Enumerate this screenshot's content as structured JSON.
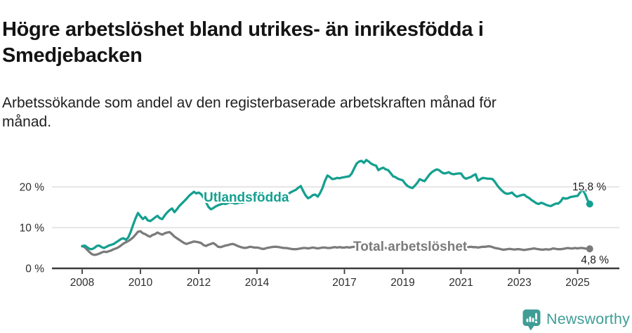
{
  "chart_data": {
    "type": "line",
    "title": "Högre arbetslöshet bland utrikes- än inrikesfödda i Smedjebacken",
    "subtitle": "Arbetssökande som andel av den registerbaserade arbetskraften månad för månad.",
    "xlabel": "",
    "ylabel": "",
    "x_start": "2008-01",
    "x_end": "2025-06",
    "frequency": "monthly",
    "xticks": [
      2008,
      2010,
      2012,
      2014,
      2017,
      2019,
      2021,
      2023,
      2025
    ],
    "ytick_labels": [
      "0 %",
      "10 %",
      "20 %"
    ],
    "ytick_values": [
      0,
      10,
      20
    ],
    "ylim": [
      0,
      28
    ],
    "grid": "horizontal-only",
    "legend": "inline-series-labels",
    "series": [
      {
        "name": "Utlandsfödda",
        "color": "#14a090",
        "end_label": "15,8 %",
        "last_value": 15.8,
        "values": [
          5.4,
          5.6,
          5.2,
          4.8,
          4.7,
          5.0,
          5.5,
          5.6,
          5.2,
          5.0,
          5.3,
          5.6,
          5.8,
          6.0,
          6.4,
          6.8,
          7.2,
          7.4,
          7.0,
          7.6,
          9.0,
          10.7,
          12.3,
          13.6,
          12.8,
          12.1,
          12.6,
          11.8,
          11.6,
          12.0,
          12.5,
          12.9,
          12.3,
          12.1,
          13.0,
          13.7,
          14.3,
          14.7,
          13.8,
          14.5,
          15.3,
          15.9,
          16.5,
          17.1,
          17.8,
          18.3,
          18.8,
          18.4,
          18.6,
          18.2,
          17.3,
          16.2,
          15.1,
          14.5,
          14.8,
          15.2,
          15.5,
          15.7,
          15.9,
          15.8,
          16.0,
          16.2,
          16.1,
          15.9,
          16.0,
          16.2,
          16.1,
          16.3,
          16.4,
          16.5,
          16.4,
          16.6,
          16.5,
          16.7,
          16.9,
          17.0,
          16.8,
          17.0,
          17.2,
          17.3,
          17.2,
          17.4,
          17.5,
          17.7,
          18.0,
          18.3,
          18.7,
          19.0,
          19.3,
          19.8,
          20.2,
          19.0,
          17.9,
          17.2,
          17.5,
          18.0,
          18.1,
          17.6,
          18.5,
          19.8,
          21.5,
          22.8,
          22.4,
          21.9,
          22.0,
          22.2,
          22.1,
          22.3,
          22.4,
          22.5,
          22.6,
          23.3,
          24.5,
          25.7,
          26.2,
          26.4,
          25.9,
          26.6,
          26.2,
          25.7,
          25.4,
          25.2,
          24.1,
          24.5,
          24.7,
          24.3,
          24.1,
          23.4,
          22.6,
          22.4,
          22.0,
          21.8,
          21.6,
          20.8,
          20.2,
          19.9,
          19.7,
          20.3,
          21.0,
          21.9,
          21.6,
          21.4,
          22.2,
          23.0,
          23.6,
          24.0,
          24.3,
          24.1,
          23.6,
          23.3,
          23.4,
          23.6,
          23.2,
          23.1,
          23.2,
          23.3,
          23.3,
          22.4,
          22.0,
          22.2,
          22.4,
          22.8,
          23.1,
          21.5,
          21.9,
          22.2,
          22.1,
          22.0,
          22.0,
          21.9,
          21.2,
          20.3,
          19.6,
          19.0,
          18.5,
          18.3,
          18.4,
          18.6,
          18.0,
          17.6,
          17.8,
          18.0,
          18.1,
          17.6,
          17.3,
          16.8,
          16.4,
          16.0,
          15.8,
          16.1,
          15.9,
          15.6,
          15.4,
          15.3,
          15.6,
          15.9,
          15.9,
          16.4,
          17.3,
          17.1,
          17.2,
          17.5,
          17.6,
          17.7,
          17.8,
          18.6,
          19.3,
          18.4,
          16.9,
          15.8
        ]
      },
      {
        "name": "Total arbetslöshet",
        "color": "#7b7b7b",
        "end_label": "4,8 %",
        "last_value": 4.8,
        "values": [
          5.5,
          5.2,
          4.6,
          4.0,
          3.5,
          3.3,
          3.4,
          3.6,
          3.9,
          4.1,
          4.0,
          4.2,
          4.4,
          4.7,
          4.9,
          5.2,
          5.6,
          6.1,
          6.4,
          6.7,
          7.1,
          7.6,
          8.3,
          9.0,
          9.1,
          8.6,
          8.4,
          8.0,
          7.8,
          8.2,
          8.4,
          8.8,
          8.5,
          8.3,
          8.6,
          8.8,
          8.9,
          8.4,
          7.8,
          7.4,
          7.0,
          6.6,
          6.2,
          6.0,
          6.2,
          6.4,
          6.6,
          6.5,
          6.4,
          6.2,
          5.7,
          5.5,
          5.8,
          6.0,
          6.2,
          5.8,
          5.3,
          5.2,
          5.4,
          5.6,
          5.7,
          5.9,
          6.0,
          5.8,
          5.5,
          5.3,
          5.1,
          5.0,
          5.1,
          5.3,
          5.2,
          5.1,
          5.1,
          5.0,
          4.8,
          4.8,
          5.0,
          5.1,
          5.2,
          5.3,
          5.3,
          5.2,
          5.1,
          5.0,
          5.0,
          4.9,
          4.8,
          4.7,
          4.7,
          4.8,
          4.9,
          5.0,
          5.0,
          4.9,
          5.0,
          5.1,
          5.0,
          4.9,
          5.0,
          5.1,
          5.1,
          5.0,
          5.0,
          5.1,
          5.2,
          5.1,
          5.2,
          5.1,
          5.1,
          5.2,
          5.1,
          5.2,
          5.3,
          5.3,
          5.2,
          5.1,
          5.0,
          5.1,
          5.2,
          5.1,
          5.1,
          5.0,
          4.9,
          4.9,
          5.0,
          5.0,
          4.9,
          4.9,
          5.0,
          5.0,
          5.1,
          5.0,
          5.0,
          5.1,
          5.1,
          5.2,
          5.2,
          5.3,
          5.3,
          5.2,
          5.2,
          5.3,
          5.4,
          5.5,
          5.5,
          5.6,
          5.8,
          6.0,
          6.0,
          5.9,
          5.8,
          5.7,
          5.6,
          5.5,
          5.4,
          5.4,
          5.3,
          5.3,
          5.2,
          5.2,
          5.3,
          5.2,
          5.2,
          5.1,
          5.2,
          5.3,
          5.3,
          5.4,
          5.4,
          5.2,
          5.0,
          4.9,
          4.8,
          4.6,
          4.6,
          4.7,
          4.8,
          4.7,
          4.6,
          4.7,
          4.7,
          4.6,
          4.5,
          4.6,
          4.7,
          4.8,
          4.9,
          4.8,
          4.7,
          4.6,
          4.6,
          4.7,
          4.6,
          4.7,
          4.9,
          4.8,
          4.7,
          4.7,
          4.8,
          4.9,
          5.0,
          4.9,
          4.9,
          5.0,
          4.9,
          5.0,
          5.0,
          4.9,
          4.8,
          4.8
        ]
      }
    ]
  },
  "footer": {
    "brand": "Newsworthy",
    "brand_color": "#3f9d96",
    "logo_icon": "bar-chart-exclamation-badge-icon"
  }
}
